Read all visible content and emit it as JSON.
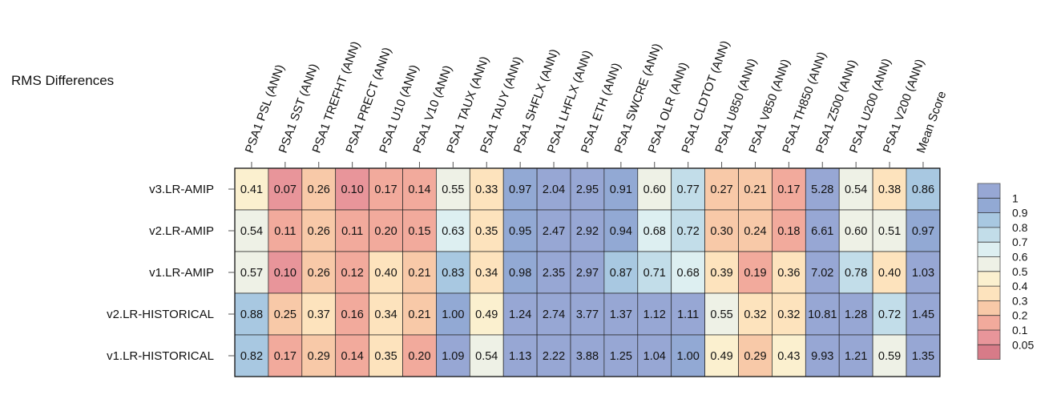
{
  "chart_data": {
    "type": "heatmap",
    "title": "RMS Differences",
    "columns": [
      "PSA1 PSL (ANN)",
      "PSA1 SST (ANN)",
      "PSA1 TREFHT (ANN)",
      "PSA1 PRECT (ANN)",
      "PSA1 U10 (ANN)",
      "PSA1 V10 (ANN)",
      "PSA1 TAUX (ANN)",
      "PSA1 TAUY (ANN)",
      "PSA1 SHFLX (ANN)",
      "PSA1 LHFLX (ANN)",
      "PSA1 ETH (ANN)",
      "PSA1 SWCRE (ANN)",
      "PSA1 OLR (ANN)",
      "PSA1 CLDTOT (ANN)",
      "PSA1 U850 (ANN)",
      "PSA1 V850 (ANN)",
      "PSA1 TH850 (ANN)",
      "PSA1 Z500 (ANN)",
      "PSA1 U200 (ANN)",
      "PSA1 V200 (ANN)",
      "Mean Score"
    ],
    "rows": [
      "v3.LR-AMIP",
      "v2.LR-AMIP",
      "v1.LR-AMIP",
      "v2.LR-HISTORICAL",
      "v1.LR-HISTORICAL"
    ],
    "values": [
      [
        "0.41",
        "0.07",
        "0.26",
        "0.10",
        "0.17",
        "0.14",
        "0.55",
        "0.33",
        "0.97",
        "2.04",
        "2.95",
        "0.91",
        "0.60",
        "0.77",
        "0.27",
        "0.21",
        "0.17",
        "5.28",
        "0.54",
        "0.38",
        "0.86"
      ],
      [
        "0.54",
        "0.11",
        "0.26",
        "0.11",
        "0.20",
        "0.15",
        "0.63",
        "0.35",
        "0.95",
        "2.47",
        "2.92",
        "0.94",
        "0.68",
        "0.72",
        "0.30",
        "0.24",
        "0.18",
        "6.61",
        "0.60",
        "0.51",
        "0.97"
      ],
      [
        "0.57",
        "0.10",
        "0.26",
        "0.12",
        "0.40",
        "0.21",
        "0.83",
        "0.34",
        "0.98",
        "2.35",
        "2.97",
        "0.87",
        "0.71",
        "0.68",
        "0.39",
        "0.19",
        "0.36",
        "7.02",
        "0.78",
        "0.40",
        "1.03"
      ],
      [
        "0.88",
        "0.25",
        "0.37",
        "0.16",
        "0.34",
        "0.21",
        "1.00",
        "0.49",
        "1.24",
        "2.74",
        "3.77",
        "1.37",
        "1.12",
        "1.11",
        "0.55",
        "0.32",
        "0.32",
        "10.81",
        "1.28",
        "0.72",
        "1.45"
      ],
      [
        "0.82",
        "0.17",
        "0.29",
        "0.14",
        "0.35",
        "0.20",
        "1.09",
        "0.54",
        "1.13",
        "2.22",
        "3.88",
        "1.25",
        "1.04",
        "1.00",
        "0.49",
        "0.29",
        "0.43",
        "9.93",
        "1.21",
        "0.59",
        "1.35"
      ]
    ],
    "colors": {
      "ref_scores": [
        [
          "0.41",
          "0.07",
          "0.26",
          "0.10",
          "0.17",
          "0.14",
          "0.55",
          "0.33",
          "0.97",
          "1.05",
          "1.05",
          "0.91",
          "0.60",
          "0.77",
          "0.27",
          "0.21",
          "0.17",
          "1.05",
          "0.54",
          "0.38",
          "0.86"
        ],
        [
          "0.54",
          "0.11",
          "0.26",
          "0.11",
          "0.20",
          "0.15",
          "0.63",
          "0.35",
          "0.95",
          "1.05",
          "1.05",
          "0.94",
          "0.68",
          "0.72",
          "0.30",
          "0.24",
          "0.18",
          "1.05",
          "0.60",
          "0.51",
          "0.97"
        ],
        [
          "0.57",
          "0.10",
          "0.26",
          "0.12",
          "0.40",
          "0.21",
          "0.83",
          "0.34",
          "0.98",
          "1.05",
          "1.05",
          "0.87",
          "0.71",
          "0.68",
          "0.39",
          "0.19",
          "0.36",
          "1.05",
          "0.78",
          "0.40",
          "1.03"
        ],
        [
          "0.88",
          "0.25",
          "0.37",
          "0.16",
          "0.34",
          "0.21",
          "1.00",
          "0.49",
          "1.05",
          "1.05",
          "1.05",
          "1.05",
          "1.05",
          "1.05",
          "0.55",
          "0.32",
          "0.32",
          "1.05",
          "1.05",
          "0.72",
          "1.05"
        ],
        [
          "0.82",
          "0.17",
          "0.29",
          "0.14",
          "0.35",
          "0.20",
          "1.05",
          "0.54",
          "1.05",
          "1.05",
          "1.05",
          "1.05",
          "1.05",
          "1.00",
          "0.49",
          "0.29",
          "0.43",
          "1.05",
          "1.05",
          "0.59",
          "1.05"
        ]
      ],
      "bin_edges": [
        0,
        0.05,
        0.1,
        0.2,
        0.3,
        0.4,
        0.5,
        0.6,
        0.7,
        0.8,
        0.9,
        1.0
      ],
      "bin_colors": [
        "#d77b88",
        "#e8959a",
        "#f2aa9c",
        "#f8c9a8",
        "#fde3bd",
        "#fbf0cf",
        "#eef1e6",
        "#ddeff1",
        "#c2dde9",
        "#a8c8e1",
        "#92a9d4",
        "#97a7d4"
      ]
    },
    "legend": {
      "labels": [
        "1",
        "0.9",
        "0.8",
        "0.7",
        "0.6",
        "0.5",
        "0.4",
        "0.3",
        "0.2",
        "0.1",
        "0.05"
      ],
      "placement": "right"
    }
  }
}
